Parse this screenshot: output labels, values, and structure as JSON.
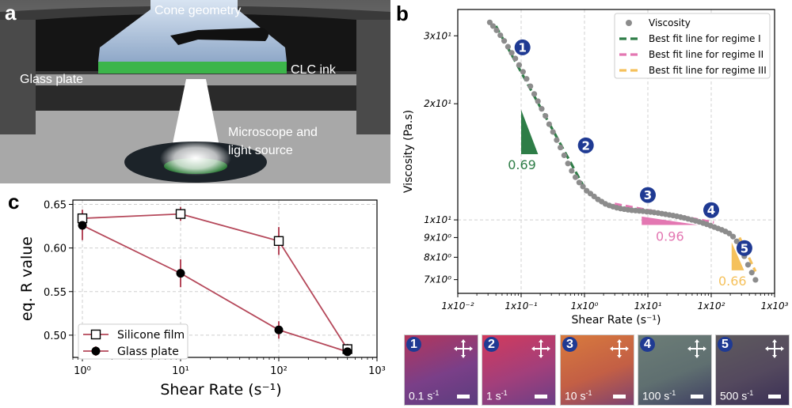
{
  "panels": {
    "a": {
      "label": "a",
      "annotations": {
        "cone": "Cone geometry",
        "ink": "CLC ink",
        "glass": "Glass plate",
        "microscope_line1": "Microscope and",
        "microscope_line2": "light source"
      }
    },
    "b": {
      "label": "b"
    },
    "c": {
      "label": "c"
    }
  },
  "chart_data": [
    {
      "id": "b",
      "type": "scatter",
      "title": "",
      "xlabel": "Shear Rate (s⁻¹)",
      "ylabel": "Viscosity (Pa.s)",
      "xscale": "log",
      "yscale": "log",
      "xlim": [
        0.01,
        1000
      ],
      "ylim": [
        6.45,
        35.1
      ],
      "grid": true,
      "legend_position": "top-right",
      "x_ticks": [
        {
          "value": 0.01,
          "label": "1x10⁻²"
        },
        {
          "value": 0.1,
          "label": "1x10⁻¹"
        },
        {
          "value": 1,
          "label": "1x10⁰"
        },
        {
          "value": 10,
          "label": "1x10¹"
        },
        {
          "value": 100,
          "label": "1x10²"
        },
        {
          "value": 1000,
          "label": "1x10³"
        }
      ],
      "y_ticks": [
        {
          "value": 30,
          "label": "3x10¹"
        },
        {
          "value": 20,
          "label": "2x10¹"
        },
        {
          "value": 10,
          "label": "1x10¹"
        },
        {
          "value": 9,
          "label": "9x10⁰"
        },
        {
          "value": 8,
          "label": "8x10⁰"
        },
        {
          "value": 7,
          "label": "7x10⁰"
        }
      ],
      "series": [
        {
          "name": "Viscosity",
          "kind": "points",
          "color": "#8c8c8c",
          "x": [
            0.032,
            0.036,
            0.041,
            0.047,
            0.054,
            0.062,
            0.071,
            0.081,
            0.093,
            0.107,
            0.122,
            0.14,
            0.161,
            0.184,
            0.211,
            0.242,
            0.277,
            0.318,
            0.364,
            0.417,
            0.478,
            0.548,
            0.628,
            0.72,
            0.825,
            0.946,
            1.08,
            1.24,
            1.42,
            1.63,
            1.87,
            2.14,
            2.46,
            2.82,
            3.23,
            3.7,
            4.24,
            4.86,
            5.57,
            6.38,
            7.31,
            8.38,
            9.6,
            11.0,
            12.6,
            14.5,
            16.6,
            19.0,
            21.8,
            25.0,
            28.6,
            32.8,
            37.6,
            43.1,
            49.4,
            56.6,
            64.9,
            74.4,
            85.2,
            97.7,
            112,
            128,
            147,
            168,
            193,
            221,
            253,
            290,
            333,
            381,
            437,
            500
          ],
          "y": [
            32.5,
            31.8,
            31.0,
            30.1,
            29.1,
            28.1,
            27.1,
            26.2,
            25.2,
            24.2,
            23.2,
            22.2,
            21.2,
            20.3,
            19.4,
            18.6,
            17.7,
            16.9,
            16.1,
            15.4,
            14.7,
            14.0,
            13.4,
            12.9,
            12.5,
            12.2,
            11.9,
            11.7,
            11.5,
            11.3,
            11.15,
            11.0,
            10.9,
            10.82,
            10.75,
            10.7,
            10.66,
            10.62,
            10.59,
            10.57,
            10.55,
            10.53,
            10.5,
            10.48,
            10.45,
            10.42,
            10.38,
            10.34,
            10.3,
            10.26,
            10.22,
            10.17,
            10.12,
            10.06,
            10.0,
            9.94,
            9.88,
            9.81,
            9.74,
            9.66,
            9.58,
            9.5,
            9.42,
            9.33,
            9.22,
            9.05,
            8.8,
            8.45,
            8.05,
            7.65,
            7.3,
            6.99
          ]
        },
        {
          "name": "Best fit line for regime I",
          "kind": "dashed-line",
          "color": "#2e7d47",
          "x": [
            0.04,
            1.0
          ],
          "y": [
            31.8,
            12.1
          ]
        },
        {
          "name": "Best fit line for regime II",
          "kind": "dashed-line",
          "color": "#e377b2",
          "x": [
            3.0,
            110
          ],
          "y": [
            11.0,
            9.85
          ]
        },
        {
          "name": "Best fit line for regime III",
          "kind": "dashed-line",
          "color": "#f5c15c",
          "x": [
            280,
            500
          ],
          "y": [
            9.0,
            7.35
          ]
        }
      ],
      "slope_triangles": [
        {
          "label": "0.69",
          "color": "#2e7d47",
          "x0": 0.1,
          "x1": 0.185,
          "ytop": 19.3,
          "ybottom": 14.8
        },
        {
          "label": "0.96",
          "color": "#e377b2",
          "x0": 8.0,
          "x1": 62,
          "ytop": 10.2,
          "ybottom": 9.65
        },
        {
          "label": "0.66",
          "color": "#f5c15c",
          "x0": 210,
          "x1": 330,
          "ytop": 8.75,
          "ybottom": 7.4
        }
      ],
      "markers": [
        {
          "label": "1",
          "x": 0.105,
          "y": 28.0
        },
        {
          "label": "2",
          "x": 1.05,
          "y": 15.6
        },
        {
          "label": "3",
          "x": 10.0,
          "y": 11.6
        },
        {
          "label": "4",
          "x": 100,
          "y": 10.6
        },
        {
          "label": "5",
          "x": 500,
          "y": 8.45
        }
      ]
    },
    {
      "id": "c",
      "type": "line",
      "title": "",
      "xlabel": "Shear Rate (s⁻¹)",
      "ylabel": "eq. R value",
      "xscale": "log",
      "xlim": [
        0.8,
        1000
      ],
      "ylim": [
        0.4745,
        0.655
      ],
      "grid": true,
      "legend_position": "lower-left",
      "x_ticks": [
        {
          "value": 1,
          "label": "10⁰"
        },
        {
          "value": 10,
          "label": "10¹"
        },
        {
          "value": 100,
          "label": "10²"
        },
        {
          "value": 1000,
          "label": "10³"
        }
      ],
      "y_ticks": [
        {
          "value": 0.5,
          "label": "0.50"
        },
        {
          "value": 0.55,
          "label": "0.55"
        },
        {
          "value": 0.6,
          "label": "0.60"
        },
        {
          "value": 0.65,
          "label": "0.65"
        }
      ],
      "x": [
        1,
        10,
        100,
        500
      ],
      "series": [
        {
          "name": "Silicone film",
          "marker": "open-square",
          "color": "#b5485a",
          "values": [
            0.634,
            0.639,
            0.608,
            0.484
          ],
          "errors": [
            0.01,
            0.008,
            0.016,
            0.006
          ]
        },
        {
          "name": "Glass plate",
          "marker": "filled-circle",
          "color": "#b5485a",
          "values": [
            0.626,
            0.571,
            0.506,
            0.481
          ],
          "errors": [
            0.017,
            0.016,
            0.01,
            0.004
          ]
        }
      ]
    }
  ],
  "thumbnails": [
    {
      "number": "1",
      "rate": "0.1 s",
      "exp": "-1",
      "colors": [
        "#b2365c",
        "#7a3f88",
        "#5b3d7e"
      ]
    },
    {
      "number": "2",
      "rate": "1 s",
      "exp": "-1",
      "colors": [
        "#d23a5c",
        "#a23f7b",
        "#6b3f86"
      ]
    },
    {
      "number": "3",
      "rate": "10 s",
      "exp": "-1",
      "colors": [
        "#d87a3d",
        "#c35f45",
        "#7e4270"
      ]
    },
    {
      "number": "4",
      "rate": "100 s",
      "exp": "-1",
      "colors": [
        "#6c7d77",
        "#5f6f70",
        "#3f3f62"
      ]
    },
    {
      "number": "5",
      "rate": "500 s",
      "exp": "-1",
      "colors": [
        "#5e5a5e",
        "#54495e",
        "#3a2f55"
      ]
    }
  ]
}
